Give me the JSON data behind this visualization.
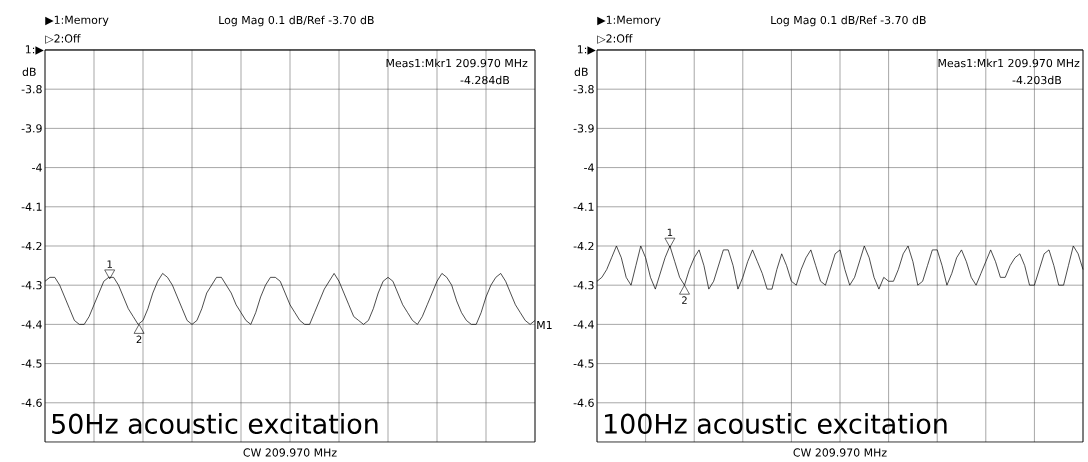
{
  "chart_data": [
    {
      "type": "line",
      "title": "50Hz acoustic excitation",
      "xlabel": "CW 209.970 MHz",
      "ylabel": "dB",
      "annotations": [
        "▶1:Memory",
        "▷2:Off",
        "Log Mag   0.1 dB/Ref   -3.70 dB",
        "Meas1:Mkr1   209.970 MHz",
        "-4.284dB",
        "M1",
        {
          "text": "1",
          "y": -4.284
        },
        {
          "text": "2",
          "y": -4.4
        }
      ],
      "categories": [
        null,
        null,
        null,
        null,
        null,
        null,
        null,
        null,
        null,
        null,
        null,
        null,
        null,
        null,
        null,
        null,
        null,
        null,
        null,
        null,
        null,
        null,
        null,
        null,
        null,
        null,
        null,
        null,
        null,
        null,
        null,
        null,
        null,
        null,
        null,
        null,
        null,
        null,
        null,
        null,
        null,
        null,
        null,
        null,
        null,
        null,
        null,
        null,
        null,
        null,
        null,
        null,
        null,
        null,
        null,
        null,
        null,
        null,
        null,
        null,
        null,
        null,
        null,
        null,
        null,
        null,
        null,
        null,
        null,
        null,
        null,
        null,
        null,
        null,
        null,
        null,
        null,
        null,
        null,
        null,
        null,
        null,
        null,
        null,
        null,
        null,
        null,
        null,
        null,
        null,
        null,
        null,
        null,
        null,
        null,
        null,
        null,
        null,
        null,
        null,
        null
      ],
      "series": [
        {
          "color": "#000000",
          "values": [
            -4.29,
            -4.28,
            -4.28,
            -4.3,
            -4.33,
            -4.36,
            -4.39,
            -4.4,
            -4.4,
            -4.38,
            -4.35,
            -4.32,
            -4.29,
            -4.28,
            -4.28,
            -4.3,
            -4.33,
            -4.36,
            -4.38,
            -4.4,
            -4.39,
            -4.36,
            -4.32,
            -4.29,
            -4.27,
            -4.28,
            -4.3,
            -4.33,
            -4.36,
            -4.39,
            -4.4,
            -4.39,
            -4.36,
            -4.32,
            -4.3,
            -4.28,
            -4.28,
            -4.3,
            -4.32,
            -4.35,
            -4.37,
            -4.39,
            -4.4,
            -4.37,
            -4.33,
            -4.3,
            -4.28,
            -4.28,
            -4.29,
            -4.32,
            -4.35,
            -4.37,
            -4.39,
            -4.4,
            -4.4,
            -4.37,
            -4.34,
            -4.31,
            -4.29,
            -4.27,
            -4.29,
            -4.32,
            -4.35,
            -4.38,
            -4.39,
            -4.4,
            -4.39,
            -4.36,
            -4.32,
            -4.29,
            -4.28,
            -4.29,
            -4.32,
            -4.35,
            -4.37,
            -4.39,
            -4.4,
            -4.38,
            -4.35,
            -4.32,
            -4.29,
            -4.27,
            -4.28,
            -4.3,
            -4.34,
            -4.37,
            -4.39,
            -4.4,
            -4.4,
            -4.37,
            -4.33,
            -4.3,
            -4.28,
            -4.27,
            -4.29,
            -4.32,
            -4.35,
            -4.37,
            -4.39,
            -4.4,
            -4.39
          ]
        }
      ],
      "ylim": [
        -4.7,
        -3.7
      ],
      "yticks": [
        -3.8,
        -3.9,
        -4,
        -4.1,
        -4.2,
        -4.3,
        -4.4,
        -4.5,
        -4.6
      ],
      "ref_lines": [
        {
          "axis": "y",
          "value": -3.7,
          "label": "1:▶"
        }
      ],
      "tick_labels": "y",
      "grid": true
    },
    {
      "type": "line",
      "title": "100Hz acoustic excitation",
      "xlabel": "CW 209.970 MHz",
      "ylabel": "dB",
      "annotations": [
        "▶1:Memory",
        "▷2:Off",
        "Log Mag   0.1 dB/Ref   -3.70 dB",
        "Meas1:Mkr1   209.970 MHz",
        "-4.203dB",
        {
          "text": "1",
          "y": -4.203
        },
        {
          "text": "2",
          "y": -4.3
        }
      ],
      "categories": [
        null,
        null,
        null,
        null,
        null,
        null,
        null,
        null,
        null,
        null,
        null,
        null,
        null,
        null,
        null,
        null,
        null,
        null,
        null,
        null,
        null,
        null,
        null,
        null,
        null,
        null,
        null,
        null,
        null,
        null,
        null,
        null,
        null,
        null,
        null,
        null,
        null,
        null,
        null,
        null,
        null,
        null,
        null,
        null,
        null,
        null,
        null,
        null,
        null,
        null,
        null,
        null,
        null,
        null,
        null,
        null,
        null,
        null,
        null,
        null,
        null,
        null,
        null,
        null,
        null,
        null,
        null,
        null,
        null,
        null,
        null,
        null,
        null,
        null,
        null,
        null,
        null,
        null,
        null,
        null,
        null,
        null,
        null,
        null,
        null,
        null,
        null,
        null,
        null,
        null,
        null,
        null,
        null,
        null,
        null,
        null,
        null,
        null,
        null,
        null,
        null
      ],
      "series": [
        {
          "color": "#000000",
          "values": [
            -4.29,
            -4.28,
            -4.26,
            -4.23,
            -4.2,
            -4.23,
            -4.28,
            -4.3,
            -4.25,
            -4.2,
            -4.23,
            -4.28,
            -4.31,
            -4.27,
            -4.23,
            -4.2,
            -4.24,
            -4.28,
            -4.3,
            -4.26,
            -4.23,
            -4.21,
            -4.25,
            -4.31,
            -4.29,
            -4.25,
            -4.21,
            -4.21,
            -4.25,
            -4.31,
            -4.28,
            -4.24,
            -4.21,
            -4.24,
            -4.27,
            -4.31,
            -4.31,
            -4.26,
            -4.22,
            -4.25,
            -4.29,
            -4.3,
            -4.26,
            -4.23,
            -4.21,
            -4.25,
            -4.29,
            -4.3,
            -4.26,
            -4.22,
            -4.21,
            -4.26,
            -4.3,
            -4.28,
            -4.24,
            -4.2,
            -4.23,
            -4.28,
            -4.31,
            -4.28,
            -4.29,
            -4.29,
            -4.26,
            -4.22,
            -4.2,
            -4.24,
            -4.3,
            -4.29,
            -4.25,
            -4.21,
            -4.21,
            -4.25,
            -4.3,
            -4.27,
            -4.23,
            -4.21,
            -4.24,
            -4.28,
            -4.3,
            -4.27,
            -4.24,
            -4.21,
            -4.24,
            -4.28,
            -4.28,
            -4.25,
            -4.23,
            -4.22,
            -4.25,
            -4.3,
            -4.3,
            -4.26,
            -4.22,
            -4.21,
            -4.25,
            -4.3,
            -4.3,
            -4.25,
            -4.2,
            -4.22,
            -4.26
          ]
        }
      ],
      "ylim": [
        -4.7,
        -3.7
      ],
      "yticks": [
        -3.8,
        -3.9,
        -4,
        -4.1,
        -4.2,
        -4.3,
        -4.4,
        -4.5,
        -4.6
      ],
      "ref_lines": [
        {
          "axis": "y",
          "value": -3.7,
          "label": "1:▶"
        }
      ],
      "tick_labels": "y",
      "grid": true
    }
  ]
}
